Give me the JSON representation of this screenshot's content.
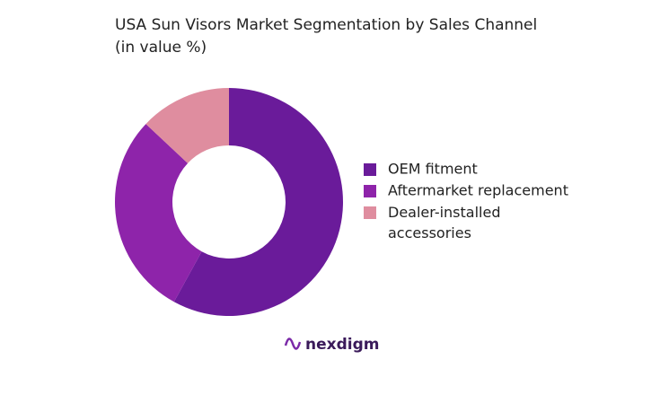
{
  "chart_data": {
    "type": "donut",
    "title": "USA Sun Visors Market Segmentation by Sales Channel",
    "subtitle": "(in value %)",
    "categories": [
      "OEM fitment",
      "Aftermarket replacement",
      "Dealer-installed accessories"
    ],
    "values": [
      58,
      29,
      13
    ],
    "colors": [
      "#6a1b9a",
      "#8e24aa",
      "#df8d9f"
    ]
  },
  "footer": {
    "logo": "nexdigm"
  }
}
